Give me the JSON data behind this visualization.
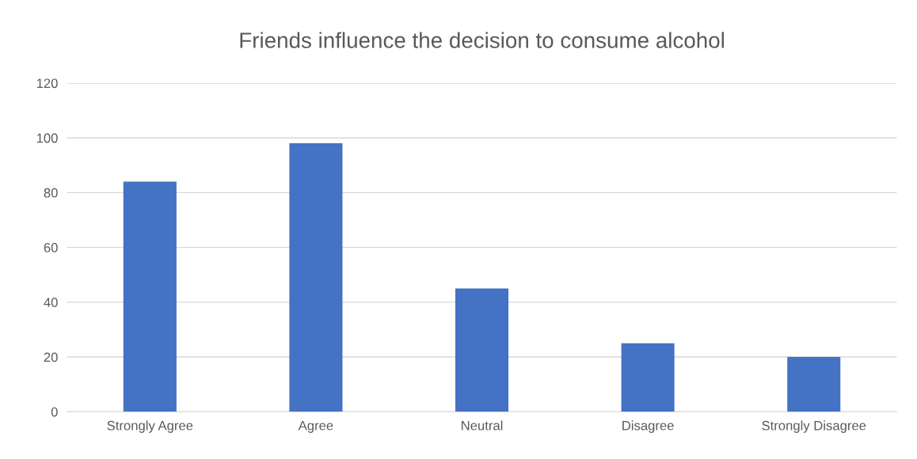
{
  "chart_data": {
    "type": "bar",
    "title": "Friends influence the decision to consume alcohol",
    "categories": [
      "Strongly Agree",
      "Agree",
      "Neutral",
      "Disagree",
      "Strongly Disagree"
    ],
    "values": [
      84,
      98,
      45,
      25,
      20
    ],
    "color": "#4472c4",
    "ylim": [
      0,
      120
    ],
    "yticks": [
      0,
      20,
      40,
      60,
      80,
      100,
      120
    ],
    "grid": "y"
  }
}
